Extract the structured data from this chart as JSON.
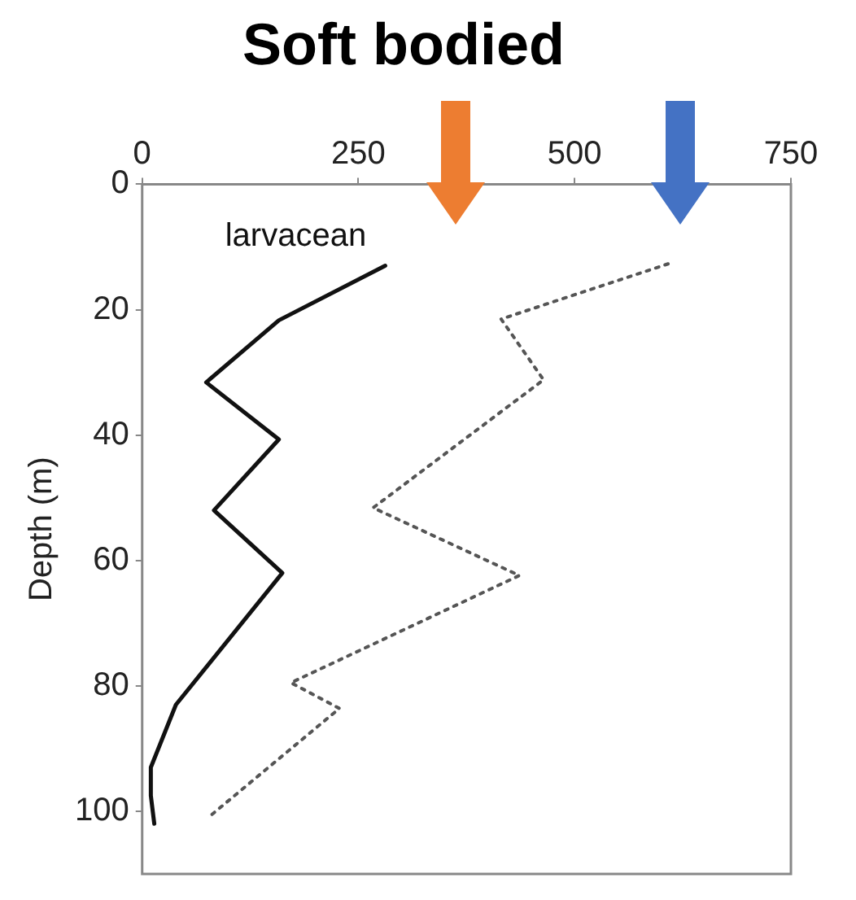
{
  "chart_data": {
    "type": "line",
    "title": "Soft bodied",
    "ylabel": "Depth (m)",
    "xlim": [
      0,
      750
    ],
    "xticks": [
      0,
      250,
      500,
      750
    ],
    "ylim": [
      110,
      0
    ],
    "yticks": [
      0,
      20,
      40,
      60,
      80,
      100
    ],
    "grid": false,
    "legend": false,
    "marker": "none",
    "series": [
      {
        "name": "larvacean",
        "color": "#111111",
        "line_style": "solid",
        "x": [
          281,
          158,
          74,
          158,
          83,
          162,
          39,
          10,
          10,
          14
        ],
        "values": [
          13,
          21.7,
          31.6,
          40.7,
          52,
          62,
          83,
          93,
          97.5,
          102
        ]
      },
      {
        "color": "#555555",
        "line_style": "dotted",
        "x": [
          608,
          415,
          464,
          267,
          436,
          172,
          228,
          79
        ],
        "values": [
          12.7,
          21.5,
          31.2,
          51.6,
          62.4,
          79.5,
          83.6,
          100.7
        ]
      }
    ]
  }
}
